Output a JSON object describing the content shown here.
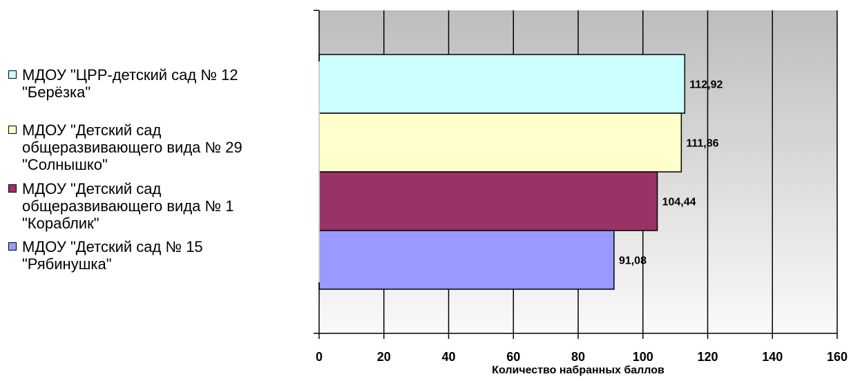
{
  "chart_data": {
    "type": "bar",
    "orientation": "horizontal",
    "xlabel": "Количество набранных баллов",
    "ylabel": "",
    "xlim": [
      0,
      160
    ],
    "x_ticks": [
      0,
      20,
      40,
      60,
      80,
      100,
      120,
      140,
      160
    ],
    "x_tick_labels": [
      "0",
      "20",
      "40",
      "60",
      "80",
      "100",
      "120",
      "140",
      "160"
    ],
    "grid": true,
    "legend_position": "left",
    "series": [
      {
        "name": "МДОУ \"ЦРР-детский сад № 12 \"Берёзка\"",
        "value": 112.92,
        "label": "112,92",
        "color": "#CCFFFF"
      },
      {
        "name": "МДОУ \"Детский сад общеразвивающего вида № 29 \"Солнышко\"",
        "value": 111.86,
        "label": "111,86",
        "color": "#FFFFCC"
      },
      {
        "name": "МДОУ \"Детский сад общеразвивающего вида № 1 \"Кораблик\"",
        "value": 104.44,
        "label": "104,44",
        "color": "#993366"
      },
      {
        "name": "МДОУ \"Детский сад № 15 \"Рябинушка\"",
        "value": 91.08,
        "label": "91,08",
        "color": "#9999FF"
      }
    ]
  },
  "legend": {
    "items": [
      {
        "label": "МДОУ \"ЦРР-детский сад № 12\n\"Берёзка\"",
        "color": "#CCFFFF"
      },
      {
        "label": "МДОУ \"Детский сад\nобщеразвивающего вида № 29\n\"Солнышко\"",
        "color": "#FFFFCC"
      },
      {
        "label": "МДОУ \"Детский сад\nобщеразвивающего вида № 1\n\"Кораблик\"",
        "color": "#993366"
      },
      {
        "label": "МДОУ \"Детский сад № 15\n\"Рябинушка\"",
        "color": "#9999FF"
      }
    ]
  }
}
